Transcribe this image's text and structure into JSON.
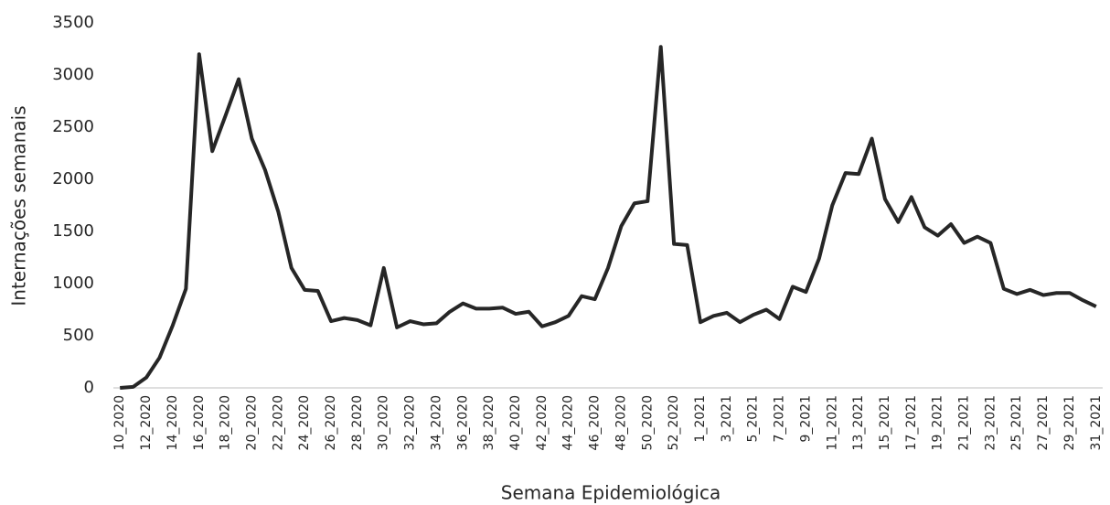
{
  "chart_data": {
    "type": "line",
    "x_label": "Semana Epidemiológica",
    "y_label": "Internações semanais",
    "categories": [
      "10_2020",
      null,
      "12_2020",
      null,
      "14_2020",
      null,
      "16_2020",
      null,
      "18_2020",
      null,
      "20_2020",
      null,
      "22_2020",
      null,
      "24_2020",
      null,
      "26_2020",
      null,
      "28_2020",
      null,
      "30_2020",
      null,
      "32_2020",
      null,
      "34_2020",
      null,
      "36_2020",
      null,
      "38_2020",
      null,
      "40_2020",
      null,
      "42_2020",
      null,
      "44_2020",
      null,
      "46_2020",
      null,
      "48_2020",
      null,
      "50_2020",
      null,
      "52_2020",
      null,
      "1_2021",
      null,
      "3_2021",
      null,
      "5_2021",
      null,
      "7_2021",
      null,
      "9_2021",
      null,
      "11_2021",
      null,
      "13_2021",
      null,
      "15_2021",
      null,
      "17_2021",
      null,
      "19_2021",
      null,
      "21_2021",
      null,
      "23_2021",
      null,
      "25_2021",
      null,
      "27_2021",
      null,
      "29_2021",
      null,
      "31_2021"
    ],
    "series": [
      {
        "color": "#262626",
        "values": [
          0,
          10,
          100,
          290,
          600,
          950,
          3200,
          2270,
          2610,
          2960,
          2390,
          2090,
          1690,
          1150,
          940,
          930,
          640,
          670,
          650,
          600,
          1150,
          580,
          640,
          610,
          620,
          730,
          810,
          760,
          760,
          770,
          710,
          730,
          590,
          630,
          690,
          880,
          850,
          1150,
          1550,
          1770,
          1790,
          3270,
          1380,
          1370,
          630,
          690,
          720,
          630,
          700,
          750,
          660,
          970,
          920,
          1240,
          1750,
          2060,
          2050,
          2390,
          1810,
          1590,
          1830,
          1540,
          1460,
          1570,
          1390,
          1450,
          1390,
          950,
          900,
          940,
          890,
          910,
          910,
          840,
          780
        ]
      }
    ],
    "ylim": [
      0,
      3500
    ],
    "yticks": [
      0,
      500,
      1000,
      1500,
      2000,
      2500,
      3000,
      3500
    ],
    "grid": false
  }
}
